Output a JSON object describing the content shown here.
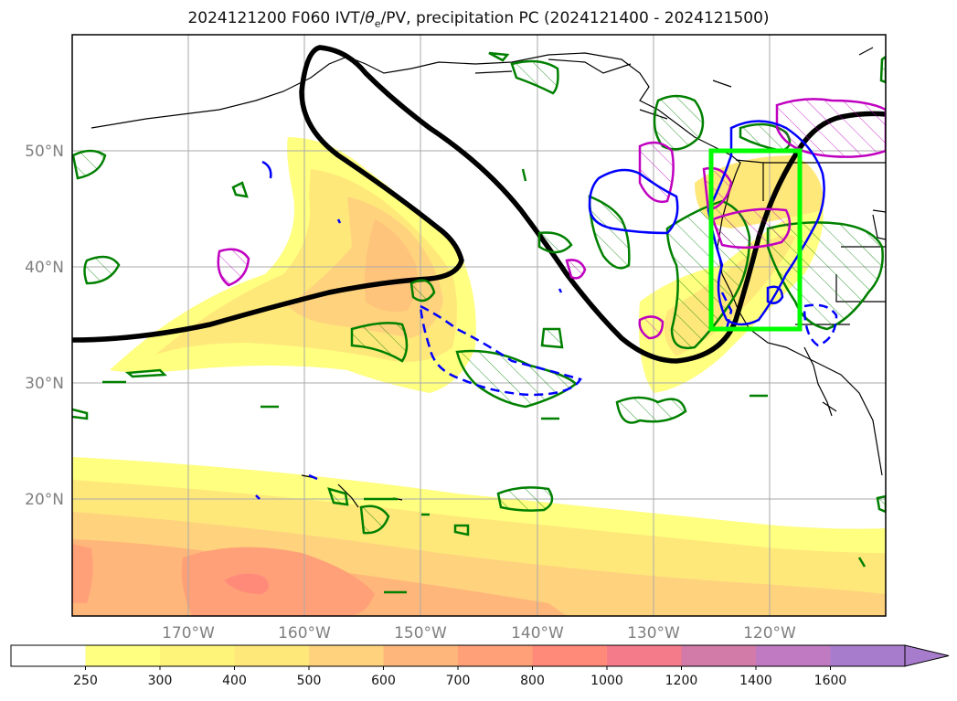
{
  "title": {
    "run": "2024121200 F060 IVT/",
    "theta_symbol": "θ",
    "theta_sub": "e",
    "rest": "/PV, precipitation PC (2024121400 - 2024121500)"
  },
  "map": {
    "projection": "PlateCarree",
    "lon_range": [
      -180,
      -110
    ],
    "lat_range": [
      10,
      60
    ],
    "lat_labels": [
      "50°N",
      "40°N",
      "30°N",
      "20°N"
    ],
    "lat_values": [
      50,
      40,
      30,
      20
    ],
    "lon_labels": [
      "170°W",
      "160°W",
      "150°W",
      "140°W",
      "130°W",
      "120°W"
    ],
    "lon_values": [
      -170,
      -160,
      -150,
      -140,
      -130,
      -120
    ],
    "gridlines": true,
    "highlight_box": {
      "color": "#00ff00",
      "lon": [
        -125,
        -117
      ],
      "lat": [
        34.5,
        50
      ]
    }
  },
  "colorbar": {
    "extend": "max",
    "levels": [
      "250",
      "300",
      "400",
      "500",
      "600",
      "700",
      "800",
      "1000",
      "1200",
      "1400",
      "1600"
    ],
    "colors": [
      "#ffffff",
      "#ffff80",
      "#fff47a",
      "#ffe87a",
      "#ffd27d",
      "#ffb67a",
      "#ffa078",
      "#ff8a7a",
      "#f47b8a",
      "#d27aa8",
      "#c07ac2",
      "#a87ccc"
    ]
  },
  "legend_colors": {
    "pv_contour": "#000000",
    "theta_e_contour": "#0000ff",
    "precip_green": "#008000",
    "precip_magenta": "#c000c0"
  }
}
